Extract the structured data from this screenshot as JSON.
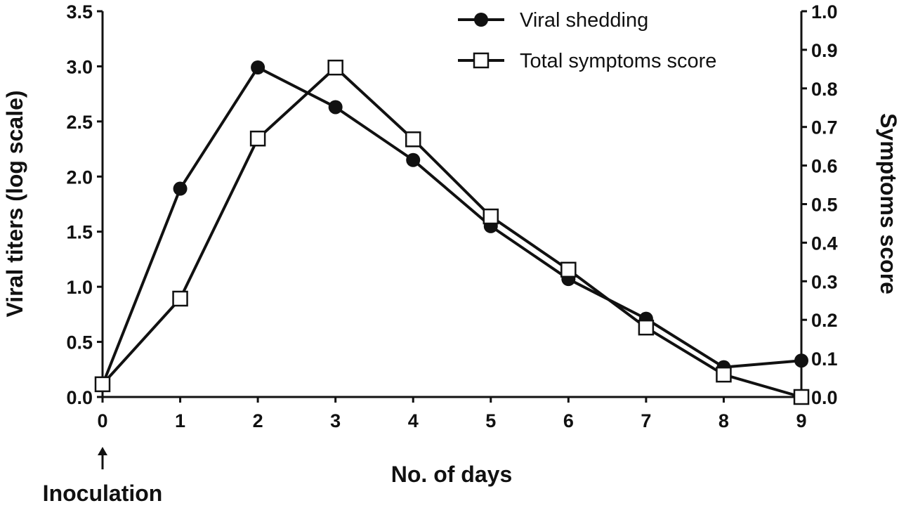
{
  "chart_data": {
    "type": "line",
    "title": "",
    "xlabel": "No. of days",
    "ylabel_left": "Viral titers (log scale)",
    "ylabel_right": "Symptoms score",
    "annotation": "Inoculation",
    "x": [
      0,
      1,
      2,
      3,
      4,
      5,
      6,
      7,
      8,
      9
    ],
    "xticks": [
      "0",
      "1",
      "2",
      "3",
      "4",
      "5",
      "6",
      "7",
      "8",
      "9"
    ],
    "ylim_left": [
      0,
      3.5
    ],
    "yticks_left": [
      "0.0",
      "0.5",
      "1.0",
      "1.5",
      "2.0",
      "2.5",
      "3.0",
      "3.5"
    ],
    "ylim_right": [
      0,
      1.0
    ],
    "yticks_right": [
      "0.0",
      "0.1",
      "0.2",
      "0.3",
      "0.4",
      "0.5",
      "0.6",
      "0.7",
      "0.8",
      "0.9",
      "1.0"
    ],
    "grid": false,
    "legend_position": "top-right",
    "series": [
      {
        "name": "Viral shedding",
        "axis": "left",
        "marker": "filled-circle",
        "values": [
          0.11,
          1.89,
          2.99,
          2.63,
          2.15,
          1.55,
          1.07,
          0.71,
          0.27,
          0.33
        ]
      },
      {
        "name": "Total symptoms score",
        "axis": "right",
        "marker": "open-square",
        "values": [
          0.033,
          0.255,
          0.67,
          0.854,
          0.668,
          0.468,
          0.33,
          0.18,
          0.058,
          0.0
        ]
      }
    ]
  }
}
